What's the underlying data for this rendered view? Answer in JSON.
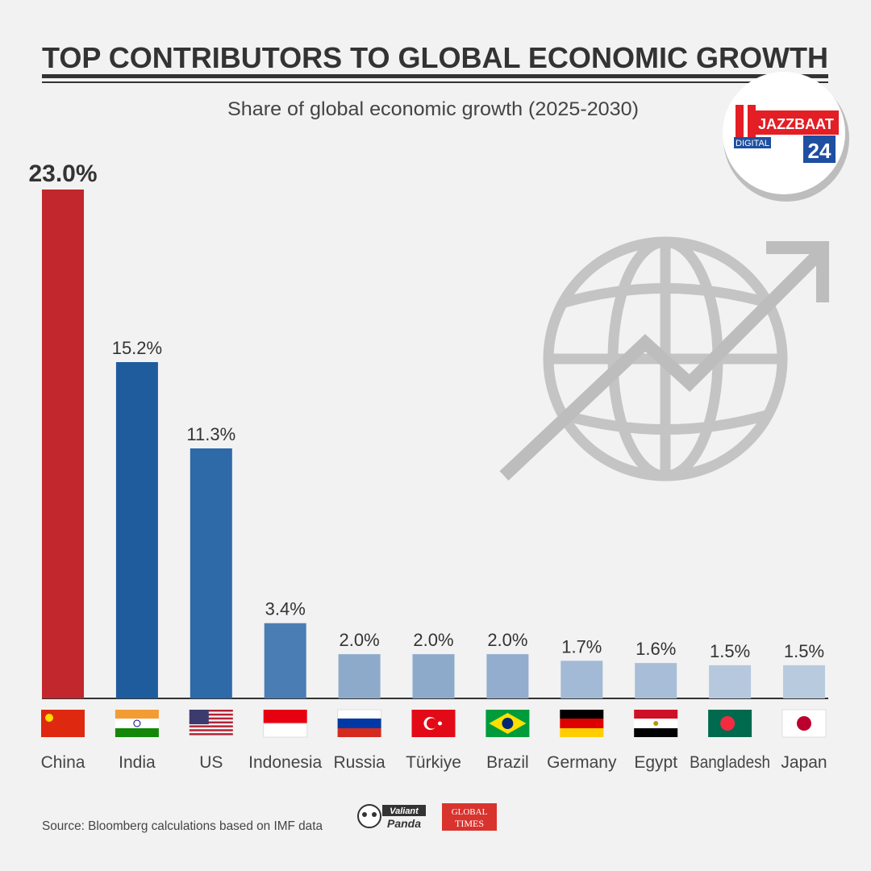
{
  "chart_data": {
    "type": "bar",
    "title": "TOP CONTRIBUTORS TO GLOBAL ECONOMIC GROWTH",
    "subtitle": "Share of global economic growth (2025-2030)",
    "categories": [
      "China",
      "India",
      "US",
      "Indonesia",
      "Russia",
      "Türkiye",
      "Brazil",
      "Germany",
      "Egypt",
      "Bangladesh",
      "Japan"
    ],
    "values": [
      23.0,
      15.2,
      11.3,
      3.4,
      2.0,
      2.0,
      2.0,
      1.7,
      1.6,
      1.5,
      1.5
    ],
    "value_labels": [
      "23.0%",
      "15.2%",
      "11.3%",
      "3.4%",
      "2.0%",
      "2.0%",
      "2.0%",
      "1.7%",
      "1.6%",
      "1.5%",
      "1.5%"
    ],
    "colors": [
      "#c1272d",
      "#1f5c9e",
      "#2e69a8",
      "#4a7db4",
      "#8eaacb",
      "#8eaacb",
      "#92adcd",
      "#a3bad6",
      "#a8bed8",
      "#b6c8dd",
      "#b8cade"
    ],
    "source": "Source: Bloomberg calculations based on IMF data"
  },
  "logos": {
    "panda": [
      "Valiant",
      "Panda"
    ],
    "times": [
      "GLOBAL",
      "TIMES"
    ]
  },
  "watermark": {
    "name": "JAZZBAAT",
    "tag": "DIGITAL",
    "number": "24"
  }
}
